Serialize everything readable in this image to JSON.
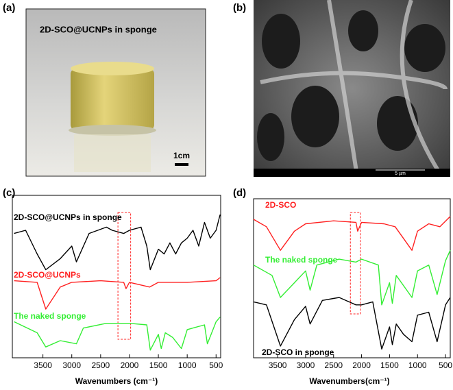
{
  "panels": [
    {
      "label": "(a)",
      "caption": "2D-SCO@UCNPs in sponge",
      "scale_bar": "1cm"
    },
    {
      "label": "(b)",
      "scale_bar": "5 µm"
    }
  ],
  "chart_data": [
    {
      "type": "line",
      "panel_label": "(c)",
      "xlabel": "Wavenumbers (cm⁻¹)",
      "xlim": [
        4030,
        420
      ],
      "xticks": [
        3500,
        3000,
        2500,
        2000,
        1500,
        1000,
        500
      ],
      "ylim": [
        0,
        100
      ],
      "series": [
        {
          "name": "2D-SCO@UCNPs in sponge",
          "color": "#000000",
          "x": [
            4000,
            3800,
            3600,
            3450,
            3200,
            3000,
            2920,
            2700,
            2400,
            2300,
            2100,
            2000,
            1800,
            1700,
            1640,
            1500,
            1400,
            1300,
            1200,
            1100,
            1000,
            900,
            800,
            700,
            600,
            500,
            430
          ],
          "values": [
            78,
            80,
            65,
            55,
            62,
            70,
            60,
            78,
            82,
            80,
            78,
            80,
            82,
            70,
            55,
            68,
            65,
            72,
            65,
            72,
            75,
            80,
            70,
            85,
            75,
            80,
            90
          ]
        },
        {
          "name": "2D-SCO@UCNPs",
          "color": "#ff2020",
          "x": [
            4000,
            3600,
            3450,
            3200,
            3000,
            2500,
            2100,
            2060,
            2000,
            1650,
            1500,
            1000,
            500,
            430
          ],
          "values": [
            48,
            47,
            30,
            44,
            47,
            48,
            47,
            43,
            47,
            44,
            47,
            47,
            48,
            50
          ]
        },
        {
          "name": "The naked sponge",
          "color": "#33ee33",
          "x": [
            4000,
            3600,
            3450,
            3200,
            2920,
            2800,
            2400,
            2000,
            1700,
            1640,
            1500,
            1450,
            1380,
            1250,
            1100,
            1000,
            900,
            700,
            650,
            500,
            430
          ],
          "values": [
            22,
            15,
            6,
            10,
            8,
            18,
            21,
            21,
            20,
            4,
            14,
            5,
            15,
            12,
            5,
            17,
            18,
            20,
            8,
            22,
            25
          ]
        }
      ]
    },
    {
      "type": "line",
      "panel_label": "(d)",
      "xlabel": "Wavenumbers(cm⁻¹)",
      "xlim": [
        3930,
        415
      ],
      "xticks": [
        3500,
        3000,
        2500,
        2000,
        1500,
        1000,
        500
      ],
      "ylim": [
        0,
        100
      ],
      "series": [
        {
          "name": "2D-SCO",
          "color": "#ff2020",
          "x": [
            3930,
            3700,
            3450,
            3200,
            3000,
            2500,
            2100,
            2070,
            2000,
            1600,
            1400,
            1100,
            1000,
            800,
            600,
            415
          ],
          "values": [
            93,
            88,
            72,
            85,
            90,
            92,
            91,
            85,
            91,
            90,
            88,
            72,
            85,
            90,
            88,
            95
          ]
        },
        {
          "name": "The naked sponge",
          "color": "#33ee33",
          "x": [
            3930,
            3600,
            3450,
            3200,
            3000,
            2920,
            2800,
            2400,
            2100,
            2000,
            1700,
            1640,
            1500,
            1450,
            1380,
            1100,
            1000,
            800,
            650,
            500,
            415
          ],
          "values": [
            62,
            55,
            40,
            50,
            58,
            45,
            62,
            66,
            64,
            66,
            62,
            35,
            50,
            36,
            55,
            40,
            58,
            62,
            42,
            65,
            72
          ]
        },
        {
          "name": "2D-SCO in sponge",
          "color": "#000000",
          "x": [
            3930,
            3700,
            3450,
            3200,
            3000,
            2920,
            2700,
            2400,
            2100,
            2000,
            1800,
            1640,
            1500,
            1450,
            1380,
            1250,
            1100,
            1000,
            800,
            650,
            500,
            415
          ],
          "values": [
            37,
            35,
            7,
            25,
            34,
            22,
            38,
            40,
            35,
            35,
            37,
            5,
            20,
            8,
            22,
            15,
            10,
            28,
            30,
            10,
            35,
            40
          ]
        }
      ]
    }
  ]
}
